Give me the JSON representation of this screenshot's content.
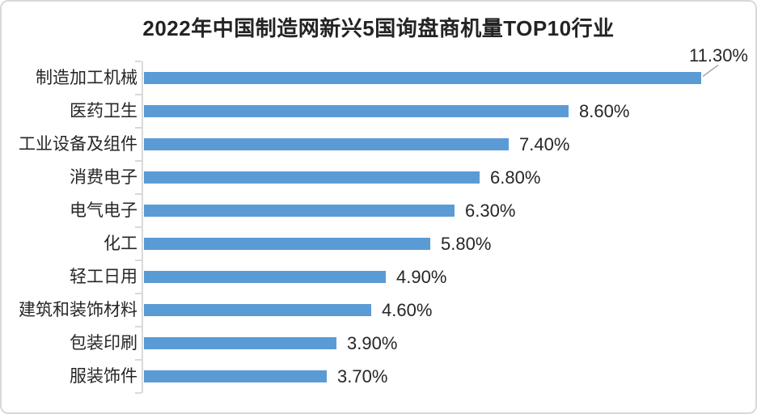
{
  "chart_data": {
    "type": "bar",
    "orientation": "horizontal",
    "title": "2022年中国制造网新兴5国询盘商机量TOP10行业",
    "categories": [
      "制造加工机械",
      "医药卫生",
      "工业设备及组件",
      "消费电子",
      "电气电子",
      "化工",
      "轻工日用",
      "建筑和装饰材料",
      "包装印刷",
      "服装饰件"
    ],
    "values": [
      11.3,
      8.6,
      7.4,
      6.8,
      6.3,
      5.8,
      4.9,
      4.6,
      3.9,
      3.7
    ],
    "value_labels": [
      "11.30%",
      "8.60%",
      "7.40%",
      "6.80%",
      "6.30%",
      "5.80%",
      "4.90%",
      "4.60%",
      "3.90%",
      "3.70%"
    ],
    "xlim": [
      0,
      11.3
    ],
    "grid": false,
    "legend": "none",
    "value_label_position": "outside-end",
    "callout": {
      "index": 0,
      "position": "above-end",
      "leader_line": true
    },
    "colors": {
      "bar": "#5b9bd5",
      "axis": "#d9d9d9",
      "leader_line": "#a6a6a6",
      "text": "#262626",
      "frame_border": "#d8d8d8"
    }
  }
}
